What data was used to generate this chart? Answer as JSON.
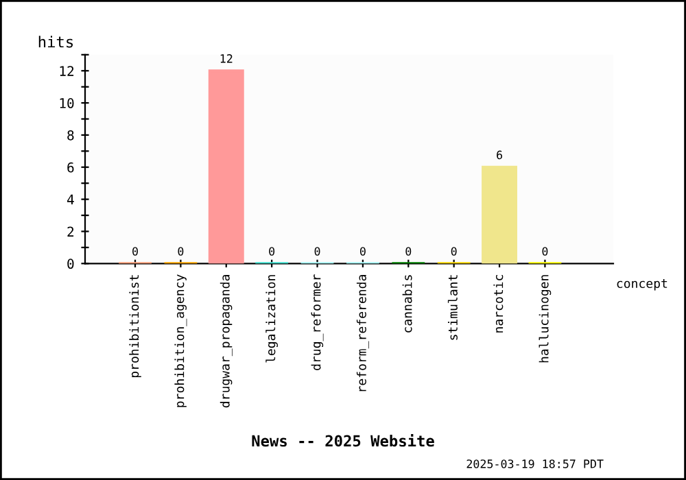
{
  "chart_data": {
    "type": "bar",
    "title": "News -- 2025 Website",
    "xlabel": "concept",
    "ylabel": "hits",
    "annotations": [
      "2025-03-19 18:57 PDT"
    ],
    "categories": [
      "prohibitionist",
      "prohibition_agency",
      "drugwar_propaganda",
      "legalization",
      "drug_reformer",
      "reform_referenda",
      "cannabis",
      "stimulant",
      "narcotic",
      "hallucinogen"
    ],
    "values": [
      0,
      0,
      12,
      0,
      0,
      0,
      0,
      0,
      6,
      0
    ],
    "colors": [
      "#ffa07a",
      "#ffa500",
      "#ff9999",
      "#40e0d0",
      "#aaffff",
      "#aaffff",
      "#008000",
      "#ffd700",
      "#f0e68c",
      "#ffff00"
    ],
    "ylim": [
      0,
      13
    ],
    "yticks": [
      0,
      {
        "value": 1,
        "label": null
      },
      2,
      {
        "value": 3,
        "label": null
      },
      4,
      {
        "value": 5,
        "label": null
      },
      6,
      {
        "value": 7,
        "label": null
      },
      8,
      {
        "value": 9,
        "label": null
      },
      10,
      {
        "value": 11,
        "label": null
      },
      12,
      {
        "value": 13,
        "label": null
      }
    ],
    "data_labels": true,
    "grid": false,
    "legend": false
  }
}
